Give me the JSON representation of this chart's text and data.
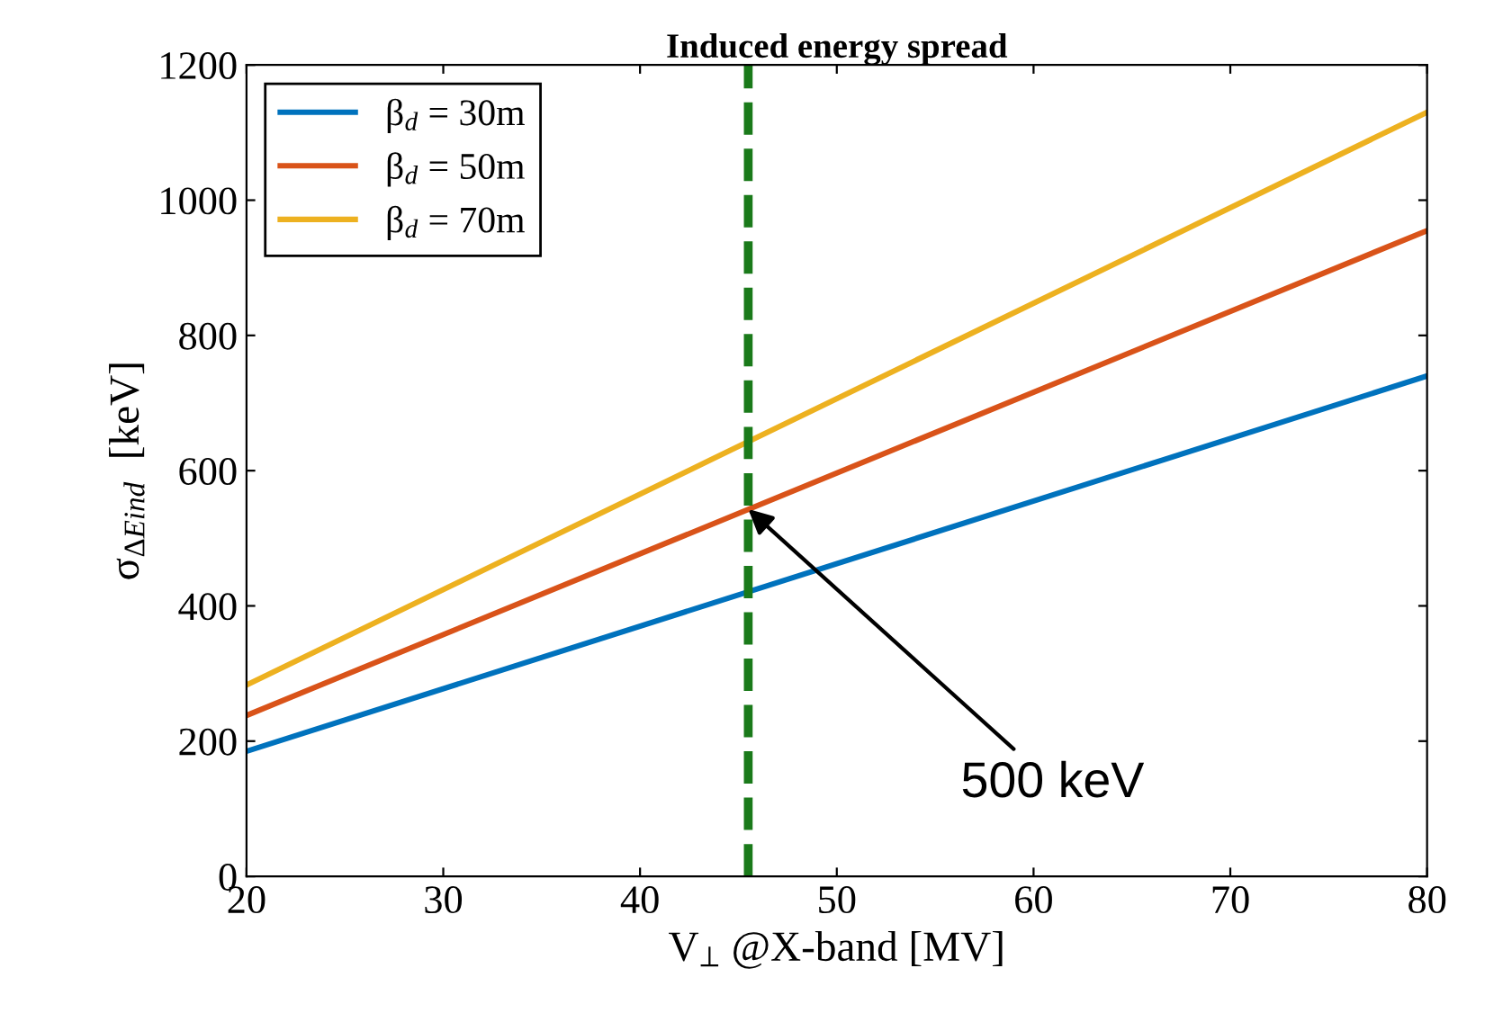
{
  "chart_data": {
    "type": "line",
    "title": "Induced energy spread",
    "xlabel": "V$_{⊥}$ @X-band [MV]",
    "ylabel": "σ$_{ΔEind}$  [keV]",
    "x": [
      20,
      80
    ],
    "series": [
      {
        "name": "β$_{d}$ = 30m",
        "color": "#0072bd",
        "values": [
          185,
          740
        ]
      },
      {
        "name": "β$_{d}$ = 50m",
        "color": "#d95319",
        "values": [
          238,
          955
        ]
      },
      {
        "name": "β$_{d}$ = 70m",
        "color": "#edb120",
        "values": [
          283,
          1130
        ]
      }
    ],
    "xlim": [
      20,
      80
    ],
    "xticks": [
      20,
      30,
      40,
      50,
      60,
      70,
      80
    ],
    "ylim": [
      0,
      1200
    ],
    "yticks": [
      0,
      200,
      400,
      600,
      800,
      1000,
      1200
    ],
    "ref_lines": [
      {
        "axis": "x",
        "value": 45.5,
        "color": "#1a7a1a",
        "line_style": "dashed"
      }
    ],
    "annotations": [
      {
        "text": "500 keV",
        "x": 45.5,
        "y": 543
      }
    ],
    "grid": false,
    "legend": "top left",
    "marker": "none",
    "line_style": "solid"
  }
}
